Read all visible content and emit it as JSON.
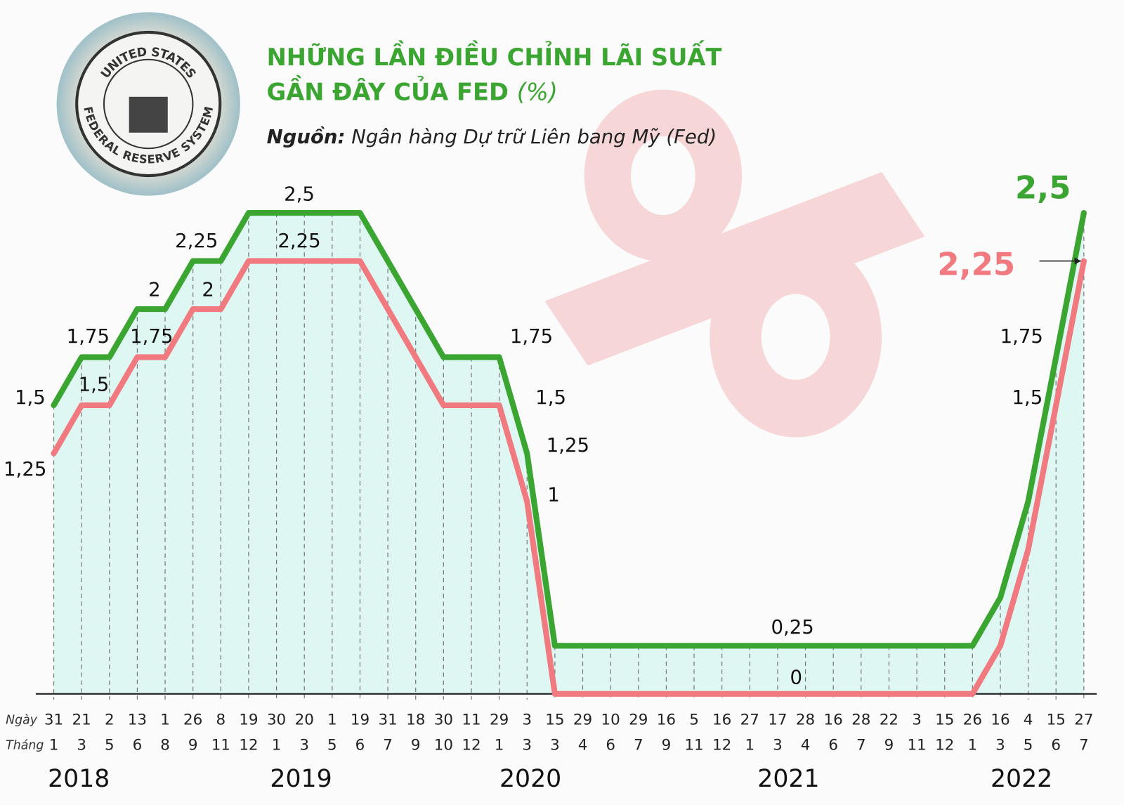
{
  "chart_data": {
    "type": "line",
    "title_line1": "NHỮNG LẦN ĐIỀU CHỈNH LÃI SUẤT",
    "title_line2": "GẦN ĐÂY CỦA FED",
    "unit": "(%)",
    "source_label": "Nguồn:",
    "source": "Ngân hàng Dự trữ Liên bang Mỹ (Fed)",
    "seal_top": "UNITED STATES",
    "seal_bottom": "FEDERAL RESERVE SYSTEM",
    "day_row_label": "Ngày",
    "month_row_label": "Tháng",
    "years": [
      "2018",
      "2019",
      "2020",
      "2021",
      "2022"
    ],
    "categories": [
      {
        "day": "31",
        "month": "1"
      },
      {
        "day": "21",
        "month": "3"
      },
      {
        "day": "2",
        "month": "5"
      },
      {
        "day": "13",
        "month": "6"
      },
      {
        "day": "1",
        "month": "8"
      },
      {
        "day": "26",
        "month": "9"
      },
      {
        "day": "8",
        "month": "11"
      },
      {
        "day": "19",
        "month": "12"
      },
      {
        "day": "30",
        "month": "1"
      },
      {
        "day": "20",
        "month": "3"
      },
      {
        "day": "1",
        "month": "5"
      },
      {
        "day": "19",
        "month": "6"
      },
      {
        "day": "31",
        "month": "7"
      },
      {
        "day": "18",
        "month": "9"
      },
      {
        "day": "30",
        "month": "10"
      },
      {
        "day": "11",
        "month": "12"
      },
      {
        "day": "29",
        "month": "1"
      },
      {
        "day": "3",
        "month": "3"
      },
      {
        "day": "15",
        "month": "3"
      },
      {
        "day": "29",
        "month": "4"
      },
      {
        "day": "10",
        "month": "6"
      },
      {
        "day": "29",
        "month": "7"
      },
      {
        "day": "16",
        "month": "9"
      },
      {
        "day": "5",
        "month": "11"
      },
      {
        "day": "16",
        "month": "12"
      },
      {
        "day": "27",
        "month": "1"
      },
      {
        "day": "17",
        "month": "3"
      },
      {
        "day": "28",
        "month": "4"
      },
      {
        "day": "16",
        "month": "6"
      },
      {
        "day": "28",
        "month": "7"
      },
      {
        "day": "22",
        "month": "9"
      },
      {
        "day": "3",
        "month": "11"
      },
      {
        "day": "15",
        "month": "12"
      },
      {
        "day": "26",
        "month": "1"
      },
      {
        "day": "16",
        "month": "3"
      },
      {
        "day": "4",
        "month": "5"
      },
      {
        "day": "15",
        "month": "6"
      },
      {
        "day": "27",
        "month": "7"
      }
    ],
    "series": [
      {
        "color": "#3aa530",
        "values": [
          1.5,
          1.75,
          1.75,
          2,
          2,
          2.25,
          2.25,
          2.5,
          2.5,
          2.5,
          2.5,
          2.5,
          2.25,
          2,
          1.75,
          1.75,
          1.75,
          1.25,
          0.25,
          0.25,
          0.25,
          0.25,
          0.25,
          0.25,
          0.25,
          0.25,
          0.25,
          0.25,
          0.25,
          0.25,
          0.25,
          0.25,
          0.25,
          0.25,
          0.5,
          1,
          1.75,
          2.5
        ],
        "value_labels": [
          "1,5",
          "1,75",
          null,
          "2",
          null,
          "2,25",
          null,
          null,
          null,
          "2,5",
          null,
          null,
          null,
          null,
          null,
          null,
          "1,75",
          "1,25",
          null,
          null,
          null,
          null,
          null,
          null,
          null,
          null,
          null,
          "0,25",
          null,
          null,
          null,
          null,
          null,
          null,
          null,
          null,
          "1,75",
          "2,5"
        ]
      },
      {
        "color": "#f07a80",
        "values": [
          1.25,
          1.5,
          1.5,
          1.75,
          1.75,
          2,
          2,
          2.25,
          2.25,
          2.25,
          2.25,
          2.25,
          2,
          1.75,
          1.5,
          1.5,
          1.5,
          1,
          0,
          0,
          0,
          0,
          0,
          0,
          0,
          0,
          0,
          0,
          0,
          0,
          0,
          0,
          0,
          0,
          0.25,
          0.75,
          1.5,
          2.25
        ],
        "value_labels": [
          "1,25",
          "1,5",
          null,
          "1,75",
          null,
          "2",
          null,
          null,
          null,
          "2,25",
          null,
          null,
          null,
          null,
          null,
          null,
          "1,5",
          "1",
          null,
          null,
          null,
          null,
          null,
          null,
          null,
          null,
          null,
          "0",
          null,
          null,
          null,
          null,
          null,
          null,
          null,
          null,
          "1,5",
          "2,25"
        ]
      }
    ],
    "ylim": [
      0,
      2.5
    ]
  }
}
